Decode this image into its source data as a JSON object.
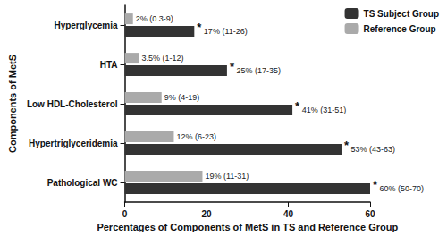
{
  "chart_data": {
    "type": "bar",
    "orientation": "horizontal",
    "categories": [
      "Hyperglycemia",
      "HTA",
      "Low HDL-Cholesterol",
      "Hypertriglyceridemia",
      "Pathological WC"
    ],
    "series": [
      {
        "name": "TS Subject Group",
        "color": "#333333",
        "values": [
          17,
          25,
          41,
          53,
          60
        ],
        "value_labels": [
          "17% (11-26)",
          "25% (17-35)",
          "41% (31-51)",
          "53% (43-63)",
          "60% (50-70)"
        ],
        "annotation": "*"
      },
      {
        "name": "Reference Group",
        "color": "#aaaaaa",
        "values": [
          2,
          3.5,
          9,
          12,
          19
        ],
        "value_labels": [
          "2% (0.3-9)",
          "3.5% (1-12)",
          "9% (4-19)",
          "12% (6-23)",
          "19% (11-31)"
        ]
      }
    ],
    "x_label": "Percentages of Components of MetS in TS and Reference Group",
    "y_label": "Components of MetS",
    "xlim": [
      0,
      60
    ],
    "xticks": [
      0,
      20,
      40,
      60
    ],
    "data_labels": true,
    "legend": "upper right",
    "grid": false
  }
}
